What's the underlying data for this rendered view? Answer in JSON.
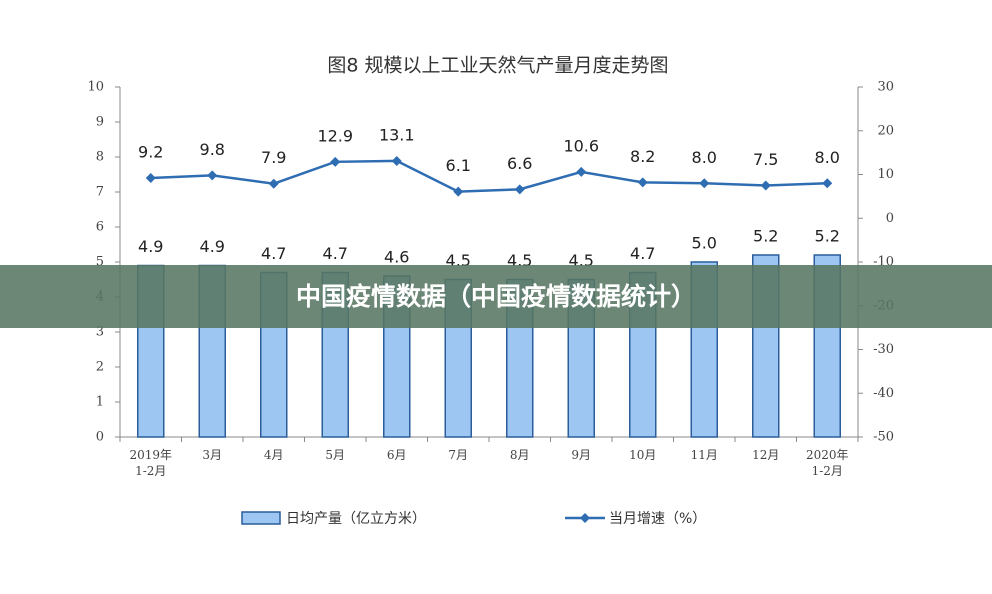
{
  "chart_data": {
    "type": "bar-line",
    "title": "图8  规模以上工业天然气产量月度走势图",
    "categories": [
      "2019年\n1-2月",
      "3月",
      "4月",
      "5月",
      "6月",
      "7月",
      "8月",
      "9月",
      "10月",
      "11月",
      "12月",
      "2020年\n1-2月"
    ],
    "series": [
      {
        "name": "日均产量（亿立方米）",
        "type": "bar",
        "color": "#9dc6f2",
        "values": [
          4.9,
          4.9,
          4.7,
          4.7,
          4.6,
          4.5,
          4.5,
          4.5,
          4.7,
          5.0,
          5.2,
          5.2
        ],
        "value_labels": [
          "4.9",
          "4.9",
          "4.7",
          "4.7",
          "4.6",
          "4.5",
          "4.5",
          "4.5",
          "4.7",
          "5.0",
          "5.2",
          "5.2"
        ]
      },
      {
        "name": "当月增速（%）",
        "type": "line",
        "axis": "y2",
        "color": "#2f6db3",
        "values": [
          9.2,
          9.8,
          7.9,
          12.9,
          13.1,
          6.1,
          6.6,
          10.6,
          8.2,
          8.0,
          7.5,
          8.0
        ],
        "value_labels": [
          "9.2",
          "9.8",
          "7.9",
          "12.9",
          "13.1",
          "6.1",
          "6.6",
          "10.6",
          "8.2",
          "8.0",
          "7.5",
          "8.0"
        ]
      }
    ],
    "ylim": [
      0,
      10
    ],
    "yticks": [
      0,
      1,
      2,
      3,
      4,
      5,
      6,
      7,
      8,
      9,
      10
    ],
    "y2lim": [
      -50,
      30
    ],
    "y2ticks": [
      -50,
      -40,
      -30,
      -20,
      -10,
      0,
      10,
      20,
      30
    ]
  },
  "banner": {
    "text": "中国疫情数据（中国疫情数据统计）"
  }
}
